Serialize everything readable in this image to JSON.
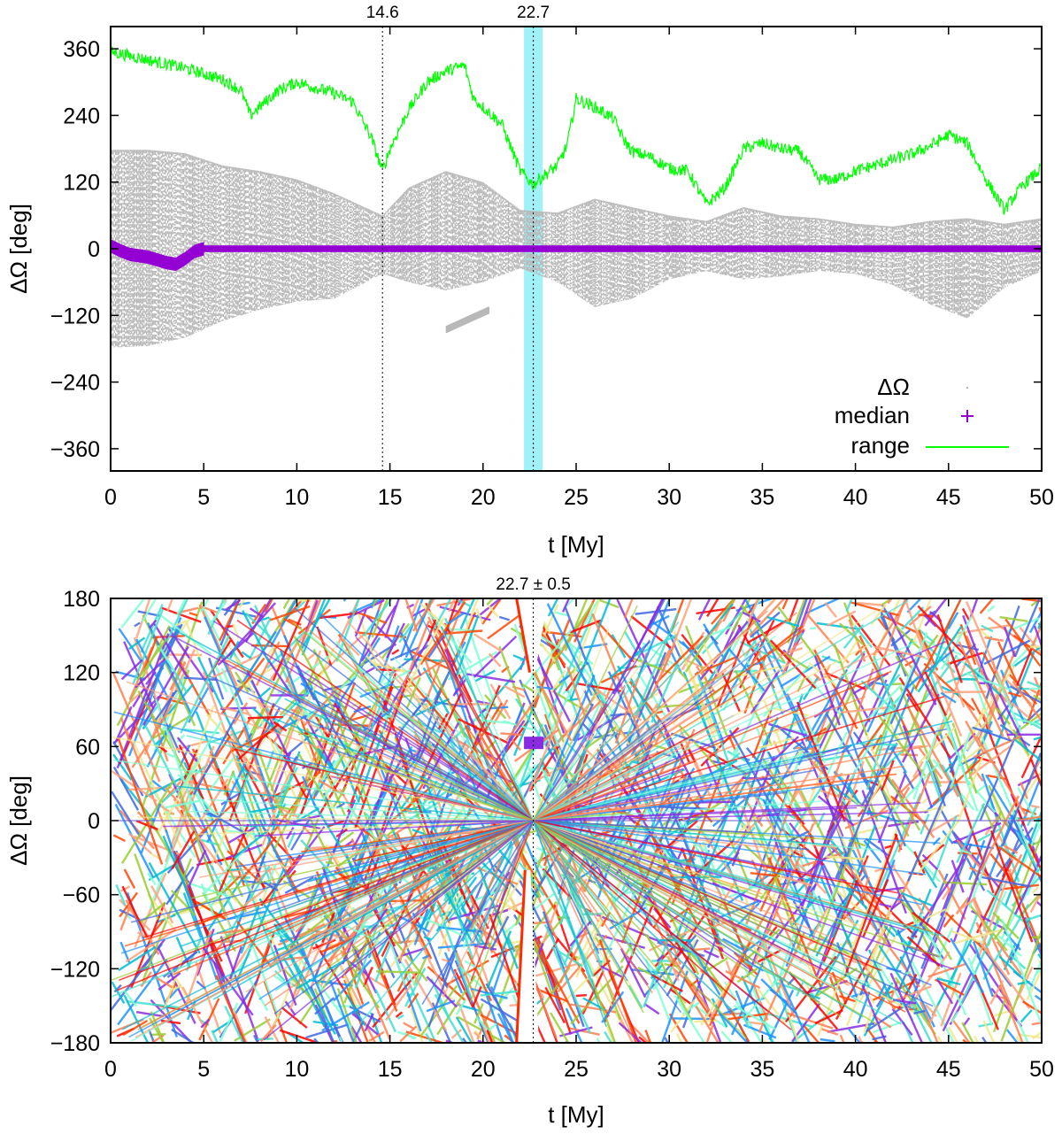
{
  "chart_data": [
    {
      "type": "scatter",
      "panel": "top",
      "xlabel": "t [My]",
      "ylabel": "ΔΩ [deg]",
      "xlim": [
        0,
        50
      ],
      "ylim": [
        -400,
        400
      ],
      "xticks": [
        0,
        5,
        10,
        15,
        20,
        25,
        30,
        35,
        40,
        45,
        50
      ],
      "yticks": [
        -360,
        -240,
        -120,
        0,
        120,
        240,
        360
      ],
      "ytick_labels": [
        "−360",
        "−240",
        "−120",
        "0",
        "120",
        "240",
        "360"
      ],
      "legend_position": "bottom-right",
      "annotations": [
        {
          "label": "14.6",
          "x": 14.6,
          "style": "dotted vertical line"
        },
        {
          "label": "22.7",
          "x": 22.7,
          "style": "dotted vertical line"
        }
      ],
      "highlight_band": {
        "x_from": 22.2,
        "x_to": 23.2,
        "color": "#9ff2f7"
      },
      "series": [
        {
          "name": "ΔΩ",
          "color": "#b8b8b8",
          "style": "dots",
          "envelope_x": [
            0,
            2,
            4,
            6,
            8,
            10,
            12,
            14.6,
            16,
            18,
            20,
            22,
            24,
            26,
            28,
            30,
            32,
            34,
            36,
            38,
            40,
            42,
            44,
            46,
            48,
            50
          ],
          "envelope_upper": [
            178,
            178,
            172,
            150,
            140,
            125,
            100,
            60,
            110,
            140,
            120,
            70,
            65,
            90,
            75,
            60,
            50,
            75,
            60,
            55,
            45,
            40,
            50,
            55,
            45,
            55
          ],
          "envelope_lower": [
            -178,
            -175,
            -160,
            -130,
            -110,
            -95,
            -90,
            -45,
            -60,
            -75,
            -60,
            -35,
            -60,
            -105,
            -90,
            -55,
            -40,
            -55,
            -50,
            -40,
            -45,
            -65,
            -100,
            -125,
            -70,
            -40
          ],
          "secondary_arc": {
            "x_from": 18,
            "x_to": 20.3,
            "y_from": -145,
            "y_to": -110
          }
        },
        {
          "name": "median",
          "color": "#9400d3",
          "style": "plus",
          "x": [
            0,
            0.5,
            1,
            2,
            3,
            3.5,
            4,
            4.5,
            5,
            10,
            15,
            20,
            25,
            30,
            35,
            40,
            45,
            50
          ],
          "y": [
            5,
            -3,
            -10,
            -15,
            -25,
            -28,
            -18,
            -5,
            0,
            0,
            0,
            0,
            0,
            0,
            0,
            0,
            0,
            0
          ]
        },
        {
          "name": "range",
          "color": "#00ff00",
          "style": "line",
          "x": [
            0,
            2,
            4,
            6,
            7,
            7.5,
            8,
            9,
            10,
            11,
            12,
            13,
            14,
            14.6,
            15,
            16,
            17,
            18,
            19,
            19.5,
            20,
            21,
            22,
            22.7,
            23,
            24,
            24.5,
            25,
            26,
            27,
            27.5,
            28,
            29,
            30,
            31,
            32,
            33,
            34,
            35,
            36,
            37,
            38,
            39,
            40,
            41,
            42,
            43,
            44,
            45,
            46,
            47,
            48,
            49,
            50
          ],
          "y": [
            355,
            340,
            325,
            305,
            285,
            240,
            255,
            285,
            300,
            290,
            280,
            265,
            200,
            140,
            180,
            250,
            300,
            320,
            330,
            270,
            255,
            225,
            140,
            115,
            125,
            150,
            185,
            270,
            255,
            235,
            200,
            175,
            165,
            145,
            140,
            80,
            110,
            180,
            190,
            180,
            175,
            125,
            125,
            140,
            150,
            160,
            170,
            185,
            205,
            190,
            125,
            70,
            115,
            145
          ]
        }
      ]
    },
    {
      "type": "scatter",
      "panel": "bottom",
      "xlabel": "t [My]",
      "ylabel": "ΔΩ [deg]",
      "xlim": [
        0,
        50
      ],
      "ylim": [
        -180,
        180
      ],
      "xticks": [
        0,
        5,
        10,
        15,
        20,
        25,
        30,
        35,
        40,
        45,
        50
      ],
      "yticks": [
        -180,
        -120,
        -60,
        0,
        60,
        120,
        180
      ],
      "ytick_labels": [
        "−180",
        "−120",
        "−60",
        "0",
        "60",
        "120",
        "180"
      ],
      "annotations": [
        {
          "label": "22.7 ± 0.5",
          "x": 22.7,
          "style": "dotted vertical line"
        }
      ],
      "description_colors": [
        "#8a2be2",
        "#4169e1",
        "#1e90ff",
        "#00bcd4",
        "#40e0d0",
        "#7fffd4",
        "#9acd32",
        "#f0e68c",
        "#ffa07a",
        "#ff7f50",
        "#ff4500",
        "#ff0000"
      ],
      "convergence_point": {
        "x": 22.7,
        "y": 0
      },
      "gap_regions": [
        {
          "x_from": 21.8,
          "x_to": 23.5,
          "y_from": 120,
          "y_to": 180
        },
        {
          "x_from": 21.8,
          "x_to": 23.0,
          "y_from": -180,
          "y_to": -40
        }
      ]
    }
  ],
  "legend": {
    "items": [
      {
        "label": "ΔΩ",
        "symbol": "dot",
        "color": "#b8b8b8"
      },
      {
        "label": "median",
        "symbol": "plus",
        "color": "#9400d3"
      },
      {
        "label": "range",
        "symbol": "line",
        "color": "#00ff00"
      }
    ]
  },
  "colors": {
    "range": "#00ff00",
    "median": "#9400d3",
    "gray": "#b8b8b8",
    "band": "#9ff2f7"
  }
}
